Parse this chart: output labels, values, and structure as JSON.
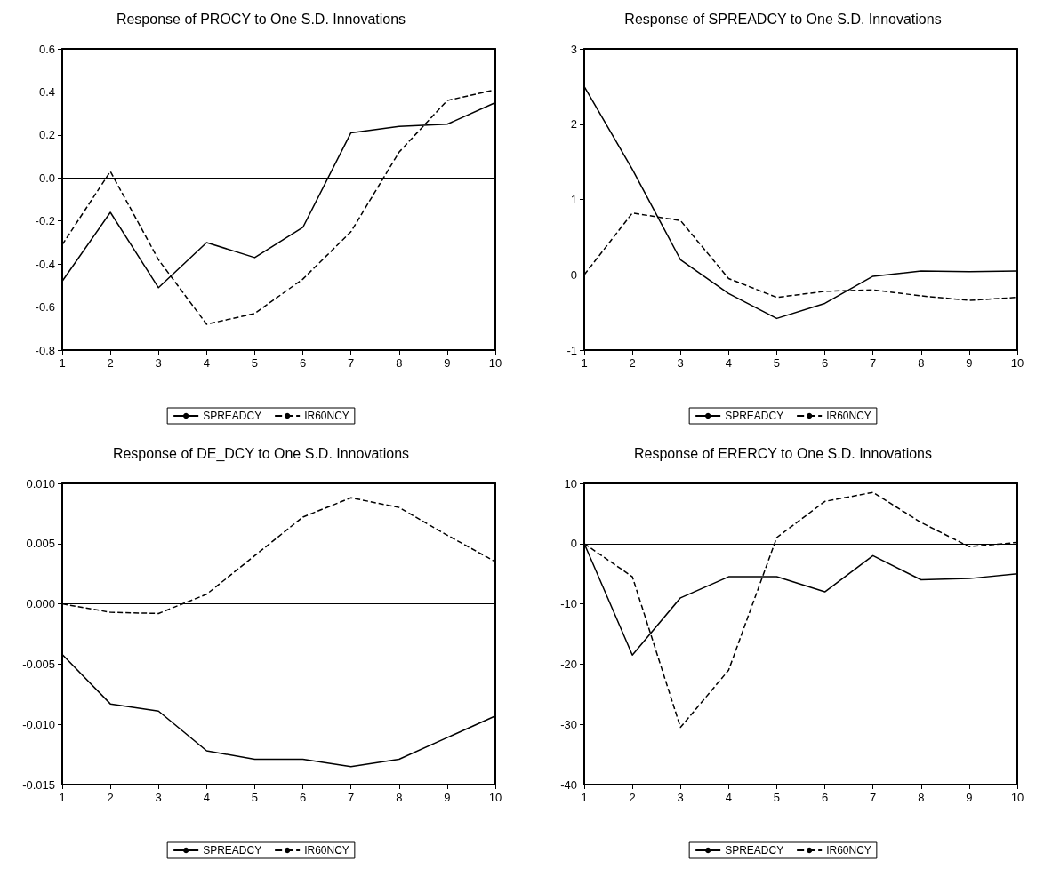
{
  "chart_data": [
    {
      "type": "line",
      "title": "Response of PROCY to One S.D. Innovations",
      "categories": [
        "1",
        "2",
        "3",
        "4",
        "5",
        "6",
        "7",
        "8",
        "9",
        "10"
      ],
      "series": [
        {
          "name": "SPREADCY",
          "color": "#000000",
          "line_style": "solid",
          "values": [
            -0.48,
            -0.16,
            -0.51,
            -0.3,
            -0.37,
            -0.23,
            0.21,
            0.24,
            0.25,
            0.35
          ]
        },
        {
          "name": "IR60NCY",
          "color": "#000000",
          "line_style": "dashed",
          "values": [
            -0.31,
            0.03,
            -0.38,
            -0.68,
            -0.63,
            -0.47,
            -0.25,
            0.12,
            0.36,
            0.41
          ]
        }
      ],
      "ylim": [
        -0.8,
        0.6
      ],
      "yticks": [
        -0.8,
        -0.6,
        -0.4,
        -0.2,
        {
          "value": 0,
          "label": "0.0"
        },
        0.2,
        0.4,
        0.6
      ],
      "grid": false,
      "legend": "bottom",
      "marker": "none",
      "ref_lines": [
        {
          "axis": "y",
          "value": 0,
          "color": "#000000",
          "line_style": "solid"
        }
      ]
    },
    {
      "type": "line",
      "title": "Response of SPREADCY to One S.D. Innovations",
      "categories": [
        "1",
        "2",
        "3",
        "4",
        "5",
        "6",
        "7",
        "8",
        "9",
        "10"
      ],
      "series": [
        {
          "name": "SPREADCY",
          "color": "#000000",
          "line_style": "solid",
          "values": [
            2.5,
            1.4,
            0.2,
            -0.25,
            -0.58,
            -0.38,
            -0.02,
            0.05,
            0.04,
            0.05
          ]
        },
        {
          "name": "IR60NCY",
          "color": "#000000",
          "line_style": "dashed",
          "values": [
            0.0,
            0.82,
            0.72,
            -0.05,
            -0.3,
            -0.22,
            -0.2,
            -0.28,
            -0.34,
            -0.3
          ]
        }
      ],
      "ylim": [
        -1,
        3
      ],
      "yticks": [
        -1,
        0,
        1,
        2,
        3
      ],
      "grid": false,
      "legend": "bottom",
      "marker": "none",
      "ref_lines": [
        {
          "axis": "y",
          "value": 0,
          "color": "#000000",
          "line_style": "solid"
        }
      ]
    },
    {
      "type": "line",
      "title": "Response of DE_DCY to One S.D. Innovations",
      "categories": [
        "1",
        "2",
        "3",
        "4",
        "5",
        "6",
        "7",
        "8",
        "9",
        "10"
      ],
      "series": [
        {
          "name": "SPREADCY",
          "color": "#000000",
          "line_style": "solid",
          "values": [
            -0.0042,
            -0.0083,
            -0.0089,
            -0.0122,
            -0.0129,
            -0.0129,
            -0.0135,
            -0.0129,
            -0.0111,
            -0.0093
          ]
        },
        {
          "name": "IR60NCY",
          "color": "#000000",
          "line_style": "dashed",
          "values": [
            0.0,
            -0.0007,
            -0.0008,
            0.0008,
            0.004,
            0.0072,
            0.0088,
            0.008,
            0.0057,
            0.0035
          ]
        }
      ],
      "ylim": [
        -0.015,
        0.01
      ],
      "yticks": [
        {
          "value": -0.015,
          "label": "-0.015"
        },
        {
          "value": -0.01,
          "label": "-0.010"
        },
        {
          "value": -0.005,
          "label": "-0.005"
        },
        {
          "value": 0,
          "label": "0.000"
        },
        {
          "value": 0.005,
          "label": "0.005"
        },
        {
          "value": 0.01,
          "label": "0.010"
        }
      ],
      "grid": false,
      "legend": "bottom",
      "marker": "none",
      "ref_lines": [
        {
          "axis": "y",
          "value": 0,
          "color": "#000000",
          "line_style": "solid"
        }
      ]
    },
    {
      "type": "line",
      "title": "Response of ERERCY to One S.D. Innovations",
      "categories": [
        "1",
        "2",
        "3",
        "4",
        "5",
        "6",
        "7",
        "8",
        "9",
        "10"
      ],
      "series": [
        {
          "name": "SPREADCY",
          "color": "#000000",
          "line_style": "solid",
          "values": [
            0,
            -18.5,
            -9,
            -5.5,
            -5.5,
            -8,
            -2,
            -6,
            -5.8,
            -5
          ]
        },
        {
          "name": "IR60NCY",
          "color": "#000000",
          "line_style": "dashed",
          "values": [
            0,
            -5.5,
            -30.5,
            -21,
            1,
            7,
            8.5,
            3.5,
            -0.5,
            0.2
          ]
        }
      ],
      "ylim": [
        -40,
        10
      ],
      "yticks": [
        -40,
        -30,
        -20,
        -10,
        0,
        10
      ],
      "grid": false,
      "legend": "bottom",
      "marker": "none",
      "ref_lines": [
        {
          "axis": "y",
          "value": 0,
          "color": "#000000",
          "line_style": "solid"
        }
      ]
    }
  ]
}
